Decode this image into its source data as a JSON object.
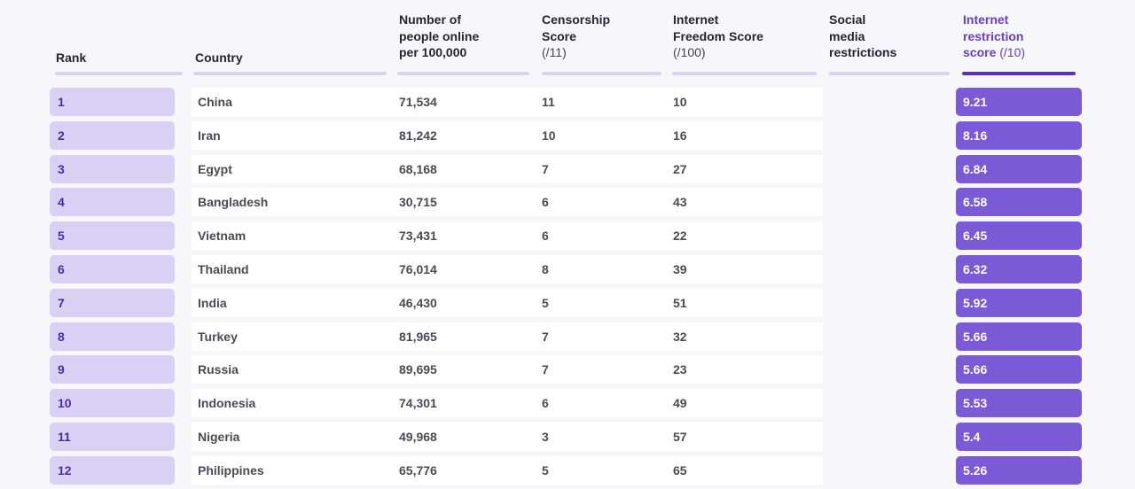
{
  "headers": {
    "rank": "Rank",
    "country": "Country",
    "online": [
      "Number of",
      "people online",
      "per 100,000"
    ],
    "censorship": [
      "Censorship",
      "Score"
    ],
    "censorship_unit": "(/11)",
    "freedom": [
      "Internet",
      "Freedom Score"
    ],
    "freedom_unit": "(/100)",
    "social": [
      "Social",
      "media",
      "restrictions"
    ],
    "restriction": [
      "Internet",
      "restriction"
    ],
    "restriction_last": "score",
    "restriction_unit": "(/10)"
  },
  "colors": {
    "accent": "#6a3fc7",
    "score_bg": "#7a5ad6",
    "rank_bg": "#d9d0f4",
    "header_underline": "#d8d4ee"
  },
  "chart_data": {
    "type": "table",
    "columns": [
      "Rank",
      "Country",
      "Number of people online per 100,000",
      "Censorship Score (/11)",
      "Internet Freedom Score (/100)",
      "Social media restrictions",
      "Internet restriction score (/10)"
    ],
    "rows": [
      {
        "rank": "1",
        "country": "China",
        "online": "71,534",
        "censorship": "11",
        "freedom": "10",
        "score": "9.21"
      },
      {
        "rank": "2",
        "country": "Iran",
        "online": "81,242",
        "censorship": "10",
        "freedom": "16",
        "score": "8.16"
      },
      {
        "rank": "3",
        "country": "Egypt",
        "online": "68,168",
        "censorship": "7",
        "freedom": "27",
        "score": "6.84"
      },
      {
        "rank": "4",
        "country": "Bangladesh",
        "online": "30,715",
        "censorship": "6",
        "freedom": "43",
        "score": "6.58"
      },
      {
        "rank": "5",
        "country": "Vietnam",
        "online": "73,431",
        "censorship": "6",
        "freedom": "22",
        "score": "6.45"
      },
      {
        "rank": "6",
        "country": "Thailand",
        "online": "76,014",
        "censorship": "8",
        "freedom": "39",
        "score": "6.32"
      },
      {
        "rank": "7",
        "country": "India",
        "online": "46,430",
        "censorship": "5",
        "freedom": "51",
        "score": "5.92"
      },
      {
        "rank": "8",
        "country": "Turkey",
        "online": "81,965",
        "censorship": "7",
        "freedom": "32",
        "score": "5.66"
      },
      {
        "rank": "9",
        "country": "Russia",
        "online": "89,695",
        "censorship": "7",
        "freedom": "23",
        "score": "5.66"
      },
      {
        "rank": "10",
        "country": "Indonesia",
        "online": "74,301",
        "censorship": "6",
        "freedom": "49",
        "score": "5.53"
      },
      {
        "rank": "11",
        "country": "Nigeria",
        "online": "49,968",
        "censorship": "3",
        "freedom": "57",
        "score": "5.4"
      },
      {
        "rank": "12",
        "country": "Philippines",
        "online": "65,776",
        "censorship": "5",
        "freedom": "65",
        "score": "5.26"
      }
    ]
  }
}
